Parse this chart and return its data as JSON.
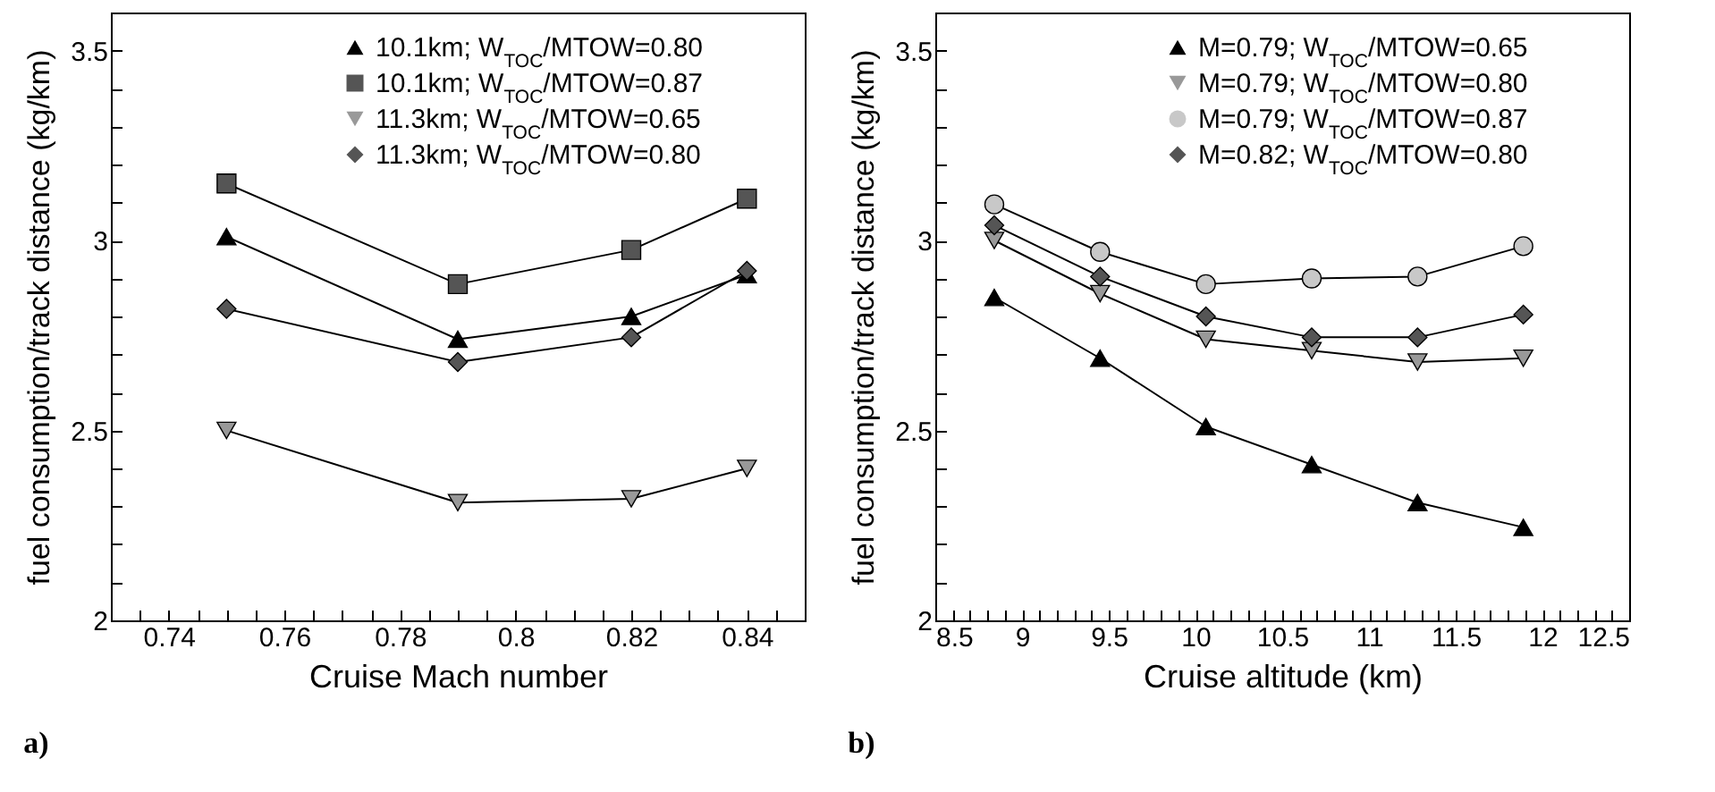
{
  "chart_data": [
    {
      "type": "line",
      "xlabel": "Cruise Mach number",
      "ylabel": "fuel consumption/track distance (kg/km)",
      "annotations": [
        "a)"
      ],
      "legend": "top right",
      "grid": false,
      "x": [
        0.75,
        0.79,
        0.82,
        0.84
      ],
      "xlim": [
        0.73,
        0.85
      ],
      "ylim": [
        2,
        3.6
      ],
      "xticks": [
        {
          "value": 0.735,
          "label": null
        },
        0.74,
        {
          "value": 0.745,
          "label": null
        },
        {
          "value": 0.75,
          "label": null
        },
        {
          "value": 0.755,
          "label": null
        },
        0.76,
        {
          "value": 0.765,
          "label": null
        },
        {
          "value": 0.77,
          "label": null
        },
        {
          "value": 0.775,
          "label": null
        },
        0.78,
        {
          "value": 0.785,
          "label": null
        },
        {
          "value": 0.79,
          "label": null
        },
        {
          "value": 0.795,
          "label": null
        },
        0.8,
        {
          "value": 0.805,
          "label": null
        },
        {
          "value": 0.81,
          "label": null
        },
        {
          "value": 0.815,
          "label": null
        },
        0.82,
        {
          "value": 0.825,
          "label": null
        },
        {
          "value": 0.83,
          "label": null
        },
        {
          "value": 0.835,
          "label": null
        },
        0.84,
        {
          "value": 0.845,
          "label": null
        }
      ],
      "yticks": [
        2,
        {
          "value": 2.1,
          "label": null
        },
        {
          "value": 2.2,
          "label": null
        },
        {
          "value": 2.3,
          "label": null
        },
        {
          "value": 2.4,
          "label": null
        },
        2.5,
        {
          "value": 2.6,
          "label": null
        },
        {
          "value": 2.7,
          "label": null
        },
        {
          "value": 2.8,
          "label": null
        },
        {
          "value": 2.9,
          "label": null
        },
        3,
        {
          "value": 3.1,
          "label": null
        },
        {
          "value": 3.2,
          "label": null
        },
        {
          "value": 3.3,
          "label": null
        },
        {
          "value": 3.4,
          "label": null
        },
        3.5
      ],
      "series": [
        {
          "name": "10.1km; W$_{TOC}$/MTOW=0.80",
          "color": "#000000",
          "marker": "triangle",
          "values": [
            3.01,
            2.74,
            2.8,
            2.91
          ]
        },
        {
          "name": "10.1km; W$_{TOC}$/MTOW=0.87",
          "color": "#555555",
          "marker": "square",
          "values": [
            3.15,
            2.885,
            2.975,
            3.11
          ]
        },
        {
          "name": "11.3km; W$_{TOC}$/MTOW=0.65",
          "color": "#999999",
          "marker": "triangle-down",
          "values": [
            2.5,
            2.31,
            2.32,
            2.4
          ]
        },
        {
          "name": "11.3km; W$_{TOC}$/MTOW=0.80",
          "color": "#555555",
          "marker": "diamond",
          "values": [
            2.82,
            2.68,
            2.745,
            2.92
          ]
        }
      ]
    },
    {
      "type": "line",
      "xlabel": "Cruise altitude (km)",
      "ylabel": "fuel consumption/track distance (kg/km)",
      "annotations": [
        "b)"
      ],
      "legend": "top right",
      "grid": false,
      "x": [
        8.84,
        9.45,
        10.06,
        10.67,
        11.28,
        11.89
      ],
      "xlim": [
        8.5,
        12.5
      ],
      "ylim": [
        2,
        3.6
      ],
      "xticks": [
        8.5,
        {
          "value": 8.6,
          "label": null
        },
        {
          "value": 8.7,
          "label": null
        },
        {
          "value": 8.8,
          "label": null
        },
        {
          "value": 8.9,
          "label": null
        },
        9,
        {
          "value": 9.1,
          "label": null
        },
        {
          "value": 9.2,
          "label": null
        },
        {
          "value": 9.3,
          "label": null
        },
        {
          "value": 9.4,
          "label": null
        },
        9.5,
        {
          "value": 9.6,
          "label": null
        },
        {
          "value": 9.7,
          "label": null
        },
        {
          "value": 9.8,
          "label": null
        },
        {
          "value": 9.9,
          "label": null
        },
        10,
        {
          "value": 10.1,
          "label": null
        },
        {
          "value": 10.2,
          "label": null
        },
        {
          "value": 10.3,
          "label": null
        },
        {
          "value": 10.4,
          "label": null
        },
        10.5,
        {
          "value": 10.6,
          "label": null
        },
        {
          "value": 10.7,
          "label": null
        },
        {
          "value": 10.8,
          "label": null
        },
        {
          "value": 10.9,
          "label": null
        },
        11,
        {
          "value": 11.1,
          "label": null
        },
        {
          "value": 11.2,
          "label": null
        },
        {
          "value": 11.3,
          "label": null
        },
        {
          "value": 11.4,
          "label": null
        },
        11.5,
        {
          "value": 11.6,
          "label": null
        },
        {
          "value": 11.7,
          "label": null
        },
        {
          "value": 11.8,
          "label": null
        },
        {
          "value": 11.9,
          "label": null
        },
        12,
        {
          "value": 12.1,
          "label": null
        },
        {
          "value": 12.2,
          "label": null
        },
        {
          "value": 12.3,
          "label": null
        },
        {
          "value": 12.4,
          "label": null
        },
        12.5
      ],
      "yticks": [
        2,
        {
          "value": 2.1,
          "label": null
        },
        {
          "value": 2.2,
          "label": null
        },
        {
          "value": 2.3,
          "label": null
        },
        {
          "value": 2.4,
          "label": null
        },
        2.5,
        {
          "value": 2.6,
          "label": null
        },
        {
          "value": 2.7,
          "label": null
        },
        {
          "value": 2.8,
          "label": null
        },
        {
          "value": 2.9,
          "label": null
        },
        3,
        {
          "value": 3.1,
          "label": null
        },
        {
          "value": 3.2,
          "label": null
        },
        {
          "value": 3.3,
          "label": null
        },
        {
          "value": 3.4,
          "label": null
        },
        3.5
      ],
      "series": [
        {
          "name": "M=0.79; W$_{TOC}$/MTOW=0.65",
          "color": "#000000",
          "marker": "triangle",
          "values": [
            2.85,
            2.69,
            2.51,
            2.41,
            2.31,
            2.245
          ]
        },
        {
          "name": "M=0.79; W$_{TOC}$/MTOW=0.80",
          "color": "#999999",
          "marker": "triangle-down",
          "values": [
            3.0,
            2.86,
            2.74,
            2.71,
            2.68,
            2.69
          ]
        },
        {
          "name": "M=0.79; W$_{TOC}$/MTOW=0.87",
          "color": "#c8c8c8",
          "marker": "circle",
          "values": [
            3.095,
            2.97,
            2.885,
            2.9,
            2.905,
            2.985
          ]
        },
        {
          "name": "M=0.82; W$_{TOC}$/MTOW=0.80",
          "color": "#555555",
          "marker": "diamond",
          "values": [
            3.04,
            2.905,
            2.8,
            2.745,
            2.745,
            2.805
          ]
        }
      ]
    }
  ]
}
